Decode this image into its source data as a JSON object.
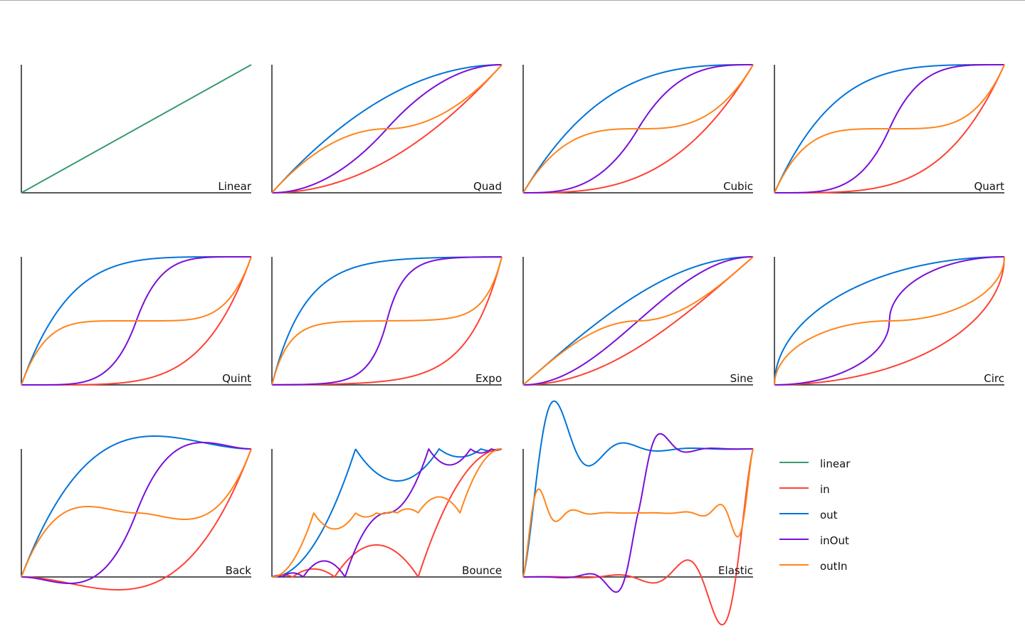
{
  "chart_data": {
    "type": "line",
    "xlim": [
      0,
      1
    ],
    "ylim": [
      0,
      1
    ],
    "grid": false,
    "legend_placement": "bottom-right",
    "series": [
      {
        "name": "linear",
        "color": "#3a9a6e"
      },
      {
        "name": "in",
        "color": "#ff4136"
      },
      {
        "name": "out",
        "color": "#0074d9"
      },
      {
        "name": "inOut",
        "color": "#7a0fd6"
      },
      {
        "name": "outIn",
        "color": "#ff851b"
      }
    ],
    "panels": [
      {
        "title": "Linear",
        "easing": "linear"
      },
      {
        "title": "Quad",
        "easing": "quad"
      },
      {
        "title": "Cubic",
        "easing": "cubic"
      },
      {
        "title": "Quart",
        "easing": "quart"
      },
      {
        "title": "Quint",
        "easing": "quint"
      },
      {
        "title": "Expo",
        "easing": "expo"
      },
      {
        "title": "Sine",
        "easing": "sine"
      },
      {
        "title": "Circ",
        "easing": "circ"
      },
      {
        "title": "Back",
        "easing": "back"
      },
      {
        "title": "Bounce",
        "easing": "bounce"
      },
      {
        "title": "Elastic",
        "easing": "elastic"
      }
    ]
  }
}
